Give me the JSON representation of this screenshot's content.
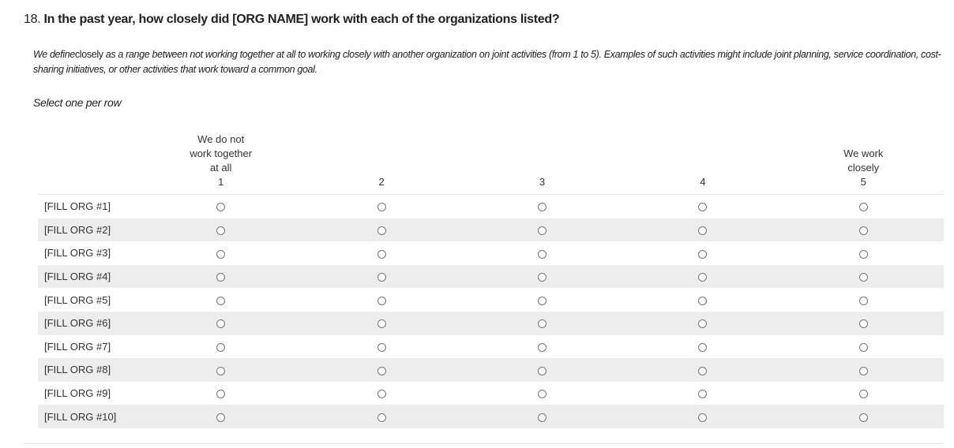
{
  "question": {
    "number": "18.",
    "text": "In the past year, how closely did [ORG NAME] work with each of the organizations listed?",
    "description_prefix": "We define",
    "description_term": "closely",
    "description_rest": " as a range between not working together at all to working closely with another organization on joint activities (from 1 to 5). Examples of such activities might include joint planning, service coordination, cost-sharing initiatives, or other activities that work toward a common goal.",
    "instruction": "Select one per row"
  },
  "columns": [
    {
      "lines": [
        "We do not",
        "work together",
        "at all"
      ],
      "value": "1"
    },
    {
      "lines": [],
      "value": "2"
    },
    {
      "lines": [],
      "value": "3"
    },
    {
      "lines": [],
      "value": "4"
    },
    {
      "lines": [
        "We work",
        "closely"
      ],
      "value": "5"
    }
  ],
  "rows": [
    "[FILL ORG #1]",
    "[FILL ORG #2]",
    "[FILL ORG #3]",
    "[FILL ORG #4]",
    "[FILL ORG #5]",
    "[FILL ORG #6]",
    "[FILL ORG #7]",
    "[FILL ORG #8]",
    "[FILL ORG #9]",
    "[FILL ORG #10]"
  ],
  "selected": [
    null,
    null,
    null,
    null,
    null,
    null,
    null,
    null,
    null,
    null
  ]
}
